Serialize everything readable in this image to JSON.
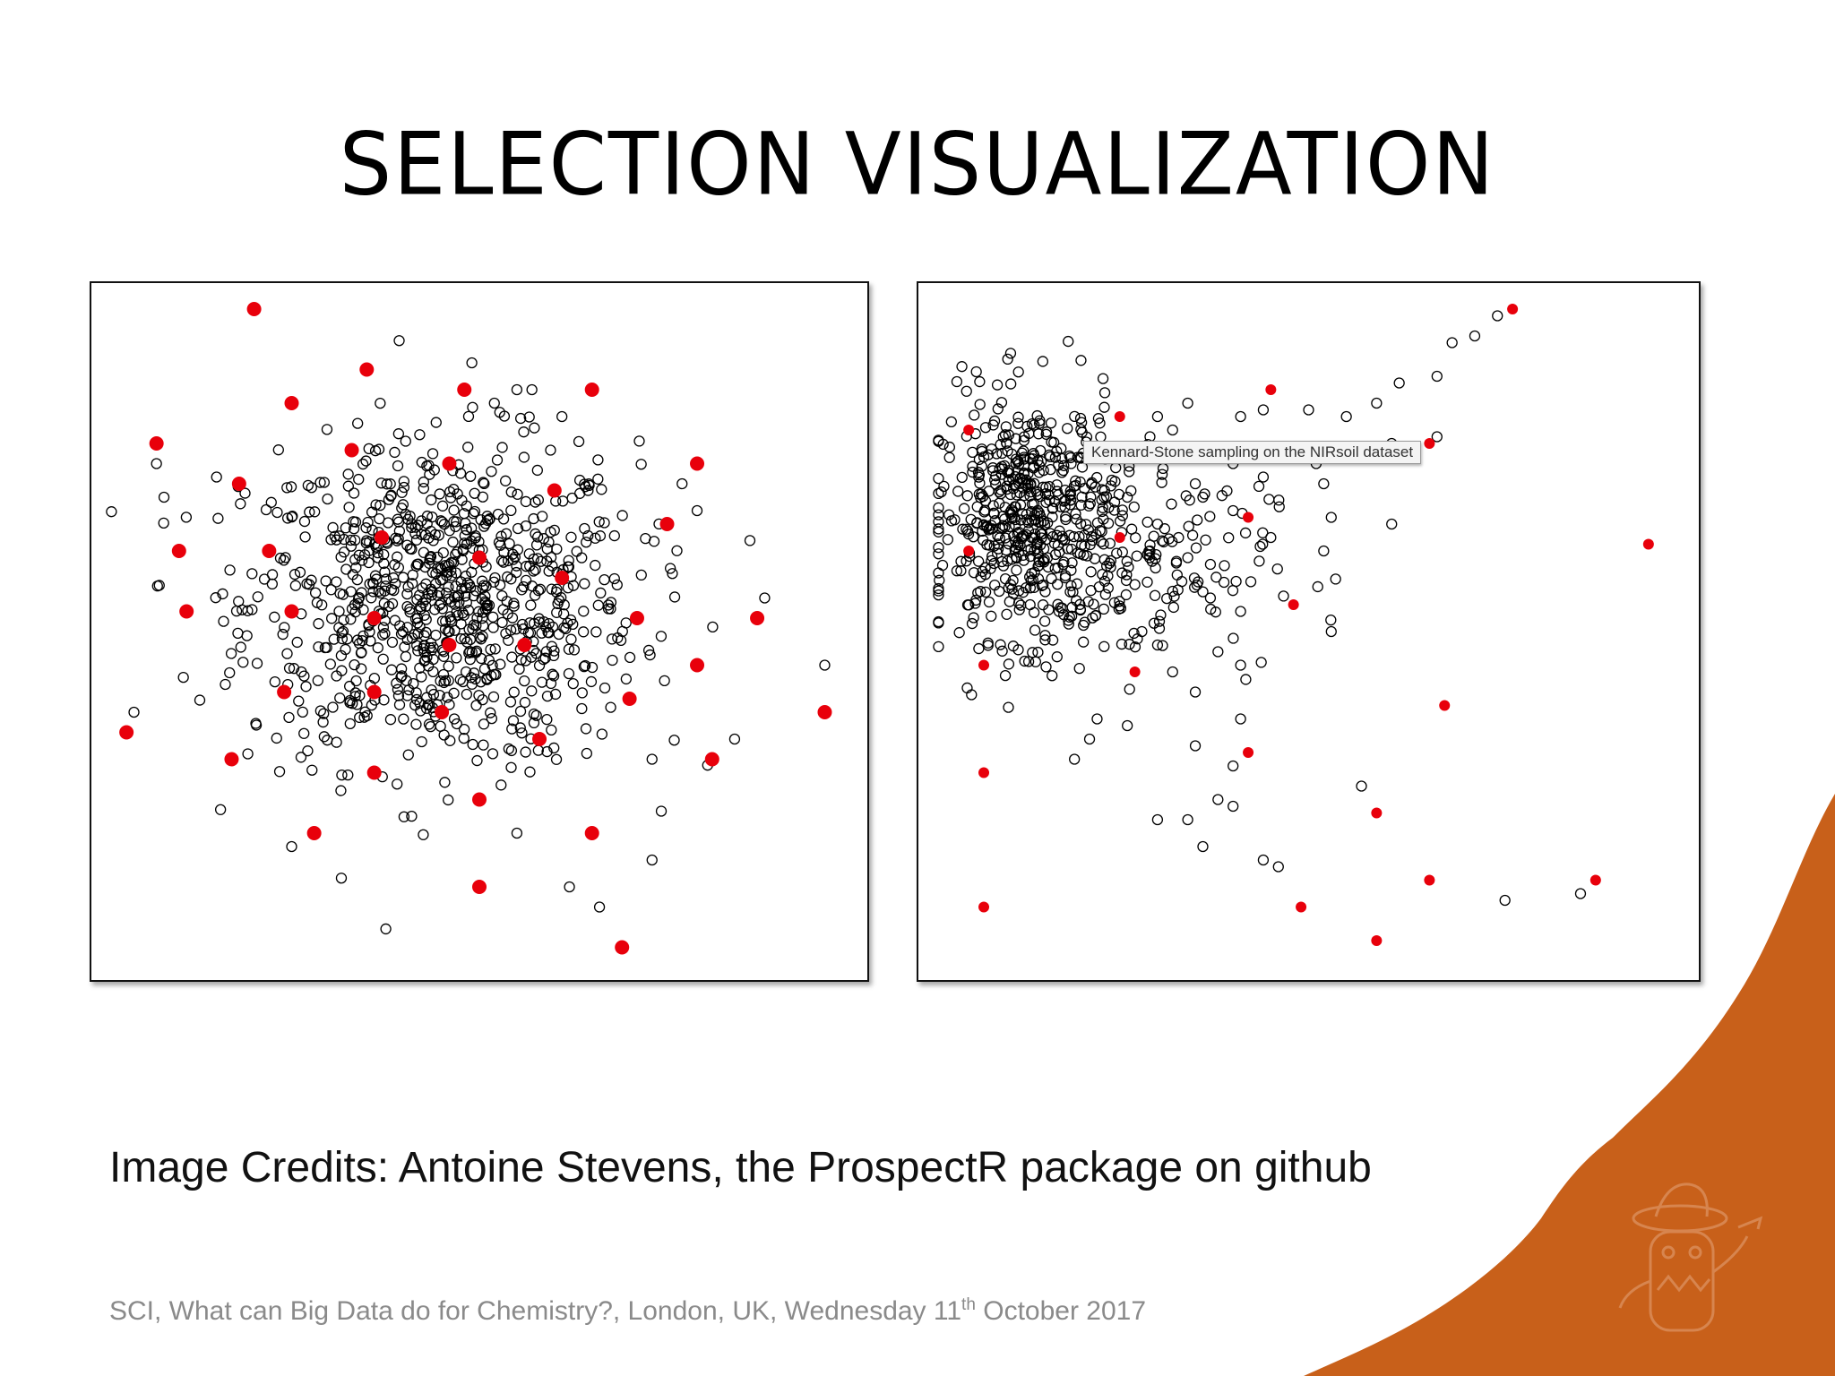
{
  "slide": {
    "title": "SELECTION VISUALIZATION",
    "credits": "Image Credits: Antoine Stevens, the ProspectR package on github",
    "footer": {
      "prefix": "SCI, What can Big Data do for Chemistry?, London, UK, Wednesday 11",
      "superscript": "th",
      "suffix": " October 2017"
    },
    "accent_color": "#c8601a"
  },
  "chart_data": [
    {
      "type": "scatter",
      "title": "",
      "xlabel": "",
      "ylabel": "",
      "xlim": [
        0,
        100
      ],
      "ylim": [
        0,
        100
      ],
      "grid": false,
      "point_style": {
        "unselected": "open black circle",
        "selected": "filled red circle"
      },
      "colors": {
        "unselected": "#000000",
        "selected": "#e8000b"
      },
      "cloud": {
        "count": 900,
        "center": [
          45,
          54
        ],
        "spread": [
          13,
          12
        ]
      },
      "selected_points": [
        [
          20,
          98
        ],
        [
          35,
          89
        ],
        [
          48,
          86
        ],
        [
          65,
          86
        ],
        [
          25,
          84
        ],
        [
          7,
          78
        ],
        [
          33,
          77
        ],
        [
          46,
          75
        ],
        [
          79,
          75
        ],
        [
          18,
          72
        ],
        [
          60,
          71
        ],
        [
          75,
          66
        ],
        [
          37,
          64
        ],
        [
          10,
          62
        ],
        [
          22,
          62
        ],
        [
          50,
          61
        ],
        [
          61,
          58
        ],
        [
          11,
          53
        ],
        [
          25,
          53
        ],
        [
          36,
          52
        ],
        [
          71,
          52
        ],
        [
          87,
          52
        ],
        [
          46,
          48
        ],
        [
          56,
          48
        ],
        [
          79,
          45
        ],
        [
          24,
          41
        ],
        [
          36,
          41
        ],
        [
          70,
          40
        ],
        [
          45,
          38
        ],
        [
          96,
          38
        ],
        [
          3,
          35
        ],
        [
          58,
          34
        ],
        [
          17,
          31
        ],
        [
          81,
          31
        ],
        [
          36,
          29
        ],
        [
          50,
          25
        ],
        [
          28,
          20
        ],
        [
          65,
          20
        ],
        [
          50,
          12
        ],
        [
          69,
          3
        ]
      ],
      "outlier_points": [
        [
          49,
          90
        ],
        [
          55,
          86
        ],
        [
          57,
          86
        ],
        [
          52,
          84
        ],
        [
          61,
          82
        ],
        [
          7,
          75
        ],
        [
          15,
          73
        ],
        [
          77,
          72
        ],
        [
          8,
          70
        ],
        [
          79,
          68
        ],
        [
          88,
          55
        ],
        [
          96,
          45
        ],
        [
          4,
          38
        ],
        [
          84,
          34
        ],
        [
          73,
          31
        ],
        [
          25,
          18
        ],
        [
          55,
          20
        ],
        [
          73,
          16
        ],
        [
          62,
          12
        ],
        [
          66,
          9
        ]
      ]
    },
    {
      "type": "scatter",
      "title": "",
      "xlabel": "",
      "ylabel": "",
      "xlim": [
        0,
        100
      ],
      "ylim": [
        0,
        100
      ],
      "grid": false,
      "tooltip": "Kennard-Stone sampling on the NIRsoil dataset",
      "point_style": {
        "unselected": "open black circle",
        "selected": "filled red circle"
      },
      "colors": {
        "unselected": "#000000",
        "selected": "#e8000b"
      },
      "dense_cloud": {
        "count": 520,
        "center": [
          13,
          67
        ],
        "spread": [
          6,
          9
        ]
      },
      "medium_cloud": {
        "count": 170,
        "center": [
          25,
          60
        ],
        "spread": [
          10,
          8
        ]
      },
      "selected_points": [
        [
          77,
          98
        ],
        [
          45,
          86
        ],
        [
          25,
          82
        ],
        [
          66,
          78
        ],
        [
          5,
          80
        ],
        [
          42,
          67
        ],
        [
          25,
          64
        ],
        [
          5,
          62
        ],
        [
          95,
          63
        ],
        [
          48,
          54
        ],
        [
          7,
          45
        ],
        [
          27,
          44
        ],
        [
          68,
          39
        ],
        [
          42,
          32
        ],
        [
          59,
          23
        ],
        [
          7,
          29
        ],
        [
          66,
          13
        ],
        [
          49,
          9
        ],
        [
          7,
          9
        ],
        [
          88,
          13
        ],
        [
          59,
          4
        ]
      ],
      "sparse_points": [
        [
          75,
          97
        ],
        [
          72,
          94
        ],
        [
          69,
          93
        ],
        [
          67,
          88
        ],
        [
          62,
          87
        ],
        [
          59,
          84
        ],
        [
          55,
          82
        ],
        [
          50,
          83
        ],
        [
          44,
          83
        ],
        [
          41,
          82
        ],
        [
          34,
          84
        ],
        [
          30,
          82
        ],
        [
          29,
          79
        ],
        [
          32,
          80
        ],
        [
          61,
          78
        ],
        [
          67,
          79
        ],
        [
          51,
          75
        ],
        [
          52,
          72
        ],
        [
          53,
          67
        ],
        [
          40,
          75
        ],
        [
          44,
          73
        ],
        [
          35,
          72
        ],
        [
          40,
          68
        ],
        [
          36,
          70
        ],
        [
          30,
          66
        ],
        [
          26,
          70
        ],
        [
          61,
          66
        ],
        [
          45,
          64
        ],
        [
          52,
          62
        ],
        [
          37,
          60
        ],
        [
          34,
          61
        ],
        [
          29,
          62
        ],
        [
          37,
          55
        ],
        [
          32,
          56
        ],
        [
          27,
          57
        ],
        [
          41,
          53
        ],
        [
          53,
          50
        ],
        [
          30,
          48
        ],
        [
          32,
          44
        ],
        [
          38,
          47
        ],
        [
          41,
          45
        ],
        [
          35,
          41
        ],
        [
          26,
          36
        ],
        [
          35,
          33
        ],
        [
          41,
          37
        ],
        [
          40,
          30
        ],
        [
          19,
          31
        ],
        [
          21,
          34
        ],
        [
          22,
          37
        ],
        [
          57,
          27
        ],
        [
          38,
          25
        ],
        [
          34,
          22
        ],
        [
          40,
          24
        ],
        [
          30,
          22
        ],
        [
          36,
          18
        ],
        [
          46,
          15
        ],
        [
          44,
          16
        ],
        [
          76,
          10
        ],
        [
          86,
          11
        ]
      ]
    }
  ]
}
